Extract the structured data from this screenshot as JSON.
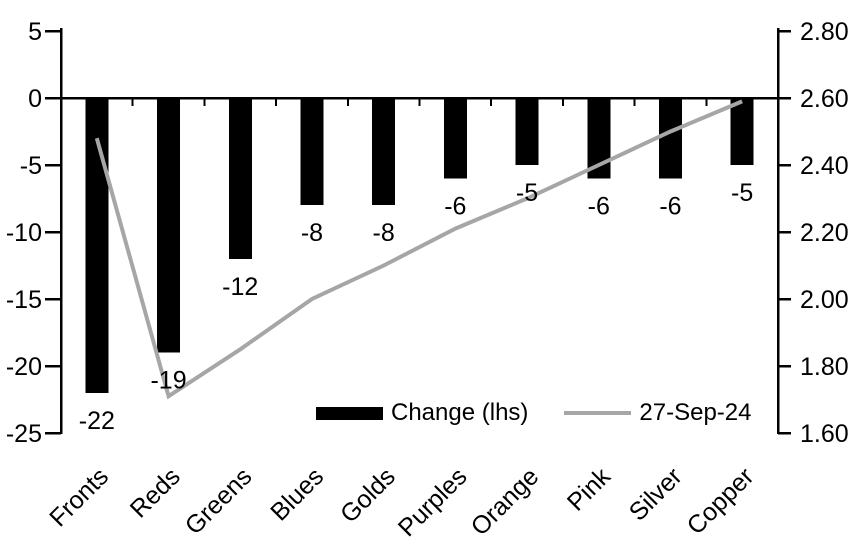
{
  "chart_data": {
    "type": "combo_bar_line",
    "title": "",
    "categories": [
      "Fronts",
      "Reds",
      "Greens",
      "Blues",
      "Golds",
      "Purples",
      "Orange",
      "Pink",
      "Silver",
      "Copper"
    ],
    "series": [
      {
        "name": "Change (lhs)",
        "type": "bar",
        "axis": "left",
        "color": "#000000",
        "values": [
          -22,
          -19,
          -12,
          -8,
          -8,
          -6,
          -5,
          -6,
          -6,
          -5
        ],
        "data_labels": [
          "-22",
          "-19",
          "-12",
          "-8",
          "-8",
          "-6",
          "-5",
          "-6",
          "-6",
          "-5"
        ]
      },
      {
        "name": "27-Sep-24",
        "type": "line",
        "axis": "right",
        "color": "#a6a6a6",
        "values": [
          2.48,
          1.71,
          1.85,
          2.0,
          2.1,
          2.21,
          2.3,
          2.4,
          2.5,
          2.59
        ]
      }
    ],
    "left_axis": {
      "min": -25,
      "max": 5,
      "tick_labels": [
        "5",
        "0",
        "-5",
        "-10",
        "-15",
        "-20",
        "-25"
      ]
    },
    "right_axis": {
      "min": 1.6,
      "max": 2.8,
      "tick_labels": [
        "2.80",
        "2.60",
        "2.40",
        "2.20",
        "2.00",
        "1.80",
        "1.60"
      ]
    },
    "legend": {
      "position": "bottom-inside"
    },
    "grid": false,
    "background": "#ffffff",
    "text_color": "#000000"
  }
}
